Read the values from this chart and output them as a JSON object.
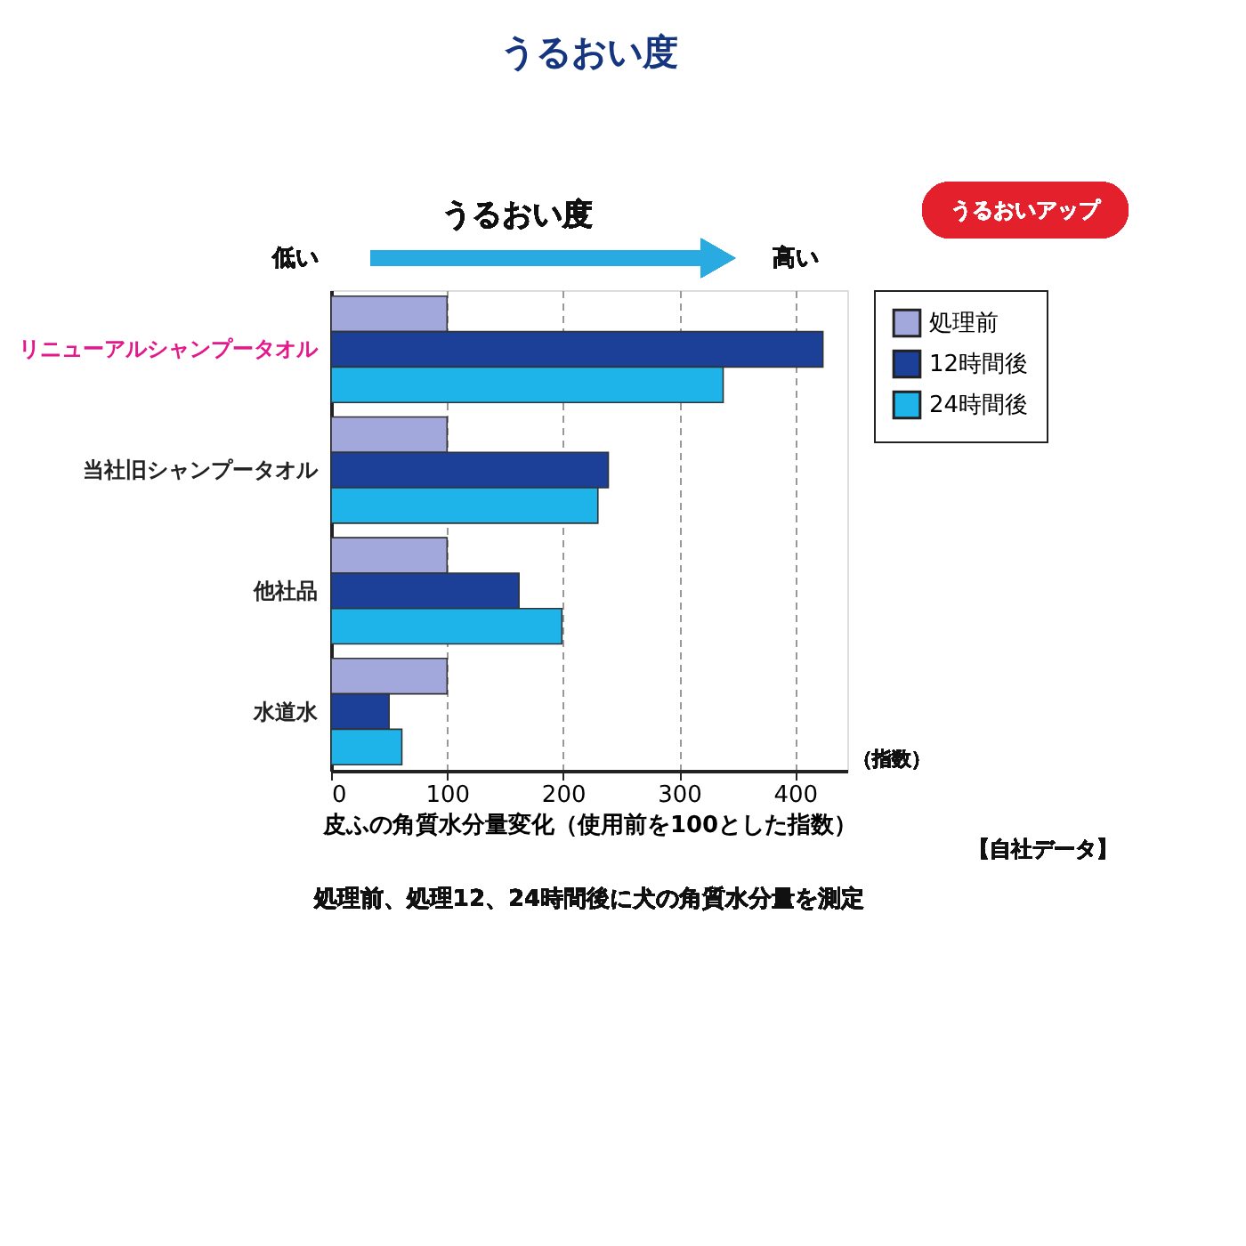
{
  "chart_data": {
    "type": "bar",
    "orientation": "horizontal",
    "title": "うるおい度",
    "categories": [
      "リニューアルシャンプータオル",
      "当社旧シャンプータオル",
      "他社品",
      "水道水"
    ],
    "series": [
      {
        "name": "処理前",
        "color": "#a3a8dc",
        "values": [
          100,
          100,
          100,
          100
        ]
      },
      {
        "name": "12時間後",
        "color": "#1c3f98",
        "values": [
          424,
          239,
          162,
          50
        ]
      },
      {
        "name": "24時間後",
        "color": "#1eb4ea",
        "values": [
          338,
          230,
          199,
          61
        ]
      }
    ],
    "xlabel": "皮ふの角質水分量変化（使用前を100とした指数）",
    "xlim": [
      0,
      445
    ],
    "xticks": [
      0,
      100,
      200,
      300,
      400
    ],
    "grid": "x",
    "legend": "right",
    "annotations": [
      "うるおい度",
      "低い",
      "高い",
      "うるおいアップ",
      "（指数）",
      "【自社データ】",
      "処理前、処理12、24時間後に犬の角質水分量を測定"
    ]
  }
}
